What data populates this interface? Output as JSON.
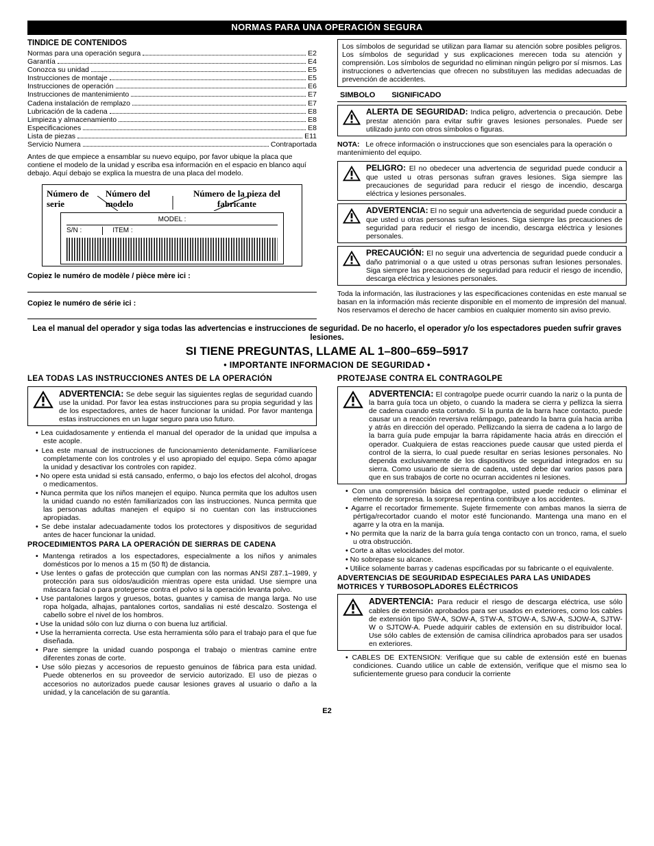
{
  "title_bar": "NORMAS PARA UNA OPERACIÓN SEGURA",
  "toc_heading": "TINDICE DE CONTENIDOS",
  "toc": [
    {
      "label": "Normas para una operación segura",
      "page": "E2"
    },
    {
      "label": "Garantía",
      "page": "E4"
    },
    {
      "label": "Conozca su unidad",
      "page": "E5"
    },
    {
      "label": "Instrucciones de montaje",
      "page": "E5"
    },
    {
      "label": "Instrucciones de operación",
      "page": "E6"
    },
    {
      "label": "Instrucciones de mantenimiento",
      "page": "E7"
    },
    {
      "label": "Cadena instalación de remplazo",
      "page": "E7"
    },
    {
      "label": "Lubricación de la cadena",
      "page": "E8"
    },
    {
      "label": "Limpieza y almacenamiento",
      "page": "E8"
    },
    {
      "label": "Especificaciones",
      "page": "E8"
    },
    {
      "label": "Lista de piezas",
      "page": "E11"
    },
    {
      "label": "Servicio Numera",
      "page": "Contraportada"
    }
  ],
  "pre_diagram_para": "Antes de que empiece a ensamblar su nuevo equipo, por favor ubique la placa que contiene el modelo de la unidad y escriba esa información en el espacio en blanco aquí debajo. Aquí debajo se explica la muestra de una placa del modelo.",
  "diagram": {
    "serie": "Número de serie",
    "modelo": "Número del modelo",
    "pieza": "Número de la pieza del fabricante",
    "model_lbl": "MODEL :",
    "sn_lbl": "S/N :",
    "item_lbl": "ITEM :"
  },
  "copy_model": "Copiez le numéro de modèle / pièce mère ici :",
  "copy_serial": "Copiez le numéro de série ici :",
  "sym_intro": "Los símbolos de seguridad se utilizan para llamar su atención sobre posibles peligros. Los símbolos de seguridad y sus explicaciones merecen toda su atención y comprensión. Los símbolos de seguridad no eliminan ningún peligro por sí mismos. Las instrucciones o advertencias que ofrecen no substituyen las medidas adecuadas de prevención de accidentes.",
  "sym_head_a": "SIMBOLO",
  "sym_head_b": "SIGNIFICADO",
  "alerta_title": "ALERTA DE SEGURIDAD:",
  "alerta_body": " Indica peligro, advertencia o precaución. Debe prestar atención para evitar sufrir graves lesiones personales. Puede ser utilizado junto con otros símbolos o figuras.",
  "nota_label": "NOTA:",
  "nota_body": "Le ofrece información o instrucciones que son esenciales para la operación o mantenimiento del equipo.",
  "peligro_title": "PELIGRO:",
  "peligro_body": " El no obedecer una advertencia de seguridad puede conducir a que usted u otras personas sufran graves lesiones. Siga siempre las precauciones de seguridad para reducir el riesgo de incendio, descarga eléctrica y lesiones personales.",
  "advert_title": "ADVERTENCIA:",
  "advert_body": " El no seguir una advertencia de seguridad puede conducir a que usted u otras personas sufran lesiones. Siga siempre las precauciones de seguridad para reducir el riesgo de incendio, descarga eléctrica y lesiones personales.",
  "precauc_title": "PRECAUCIÓN:",
  "precauc_body": " El no seguir una advertencia de seguridad puede conducir a daño patrimonial o a que usted u otras personas sufran lesiones personales. Siga siempre las precauciones de seguridad para reducir el riesgo de incendio, descarga eléctrica y lesiones personales.",
  "disclaimer": "Toda la información, las ilustraciones y las especificaciones contenidas en este manual se basan en la información más reciente disponible en el momento de impresión del manual. Nos reservamos el derecho de hacer cambios en cualquier momento sin aviso previo.",
  "read_manual": "Lea el manual del operador y siga todas las advertencias e instrucciones de seguridad. De no hacerlo, el operador y/o los espectadores pueden sufrir graves lesiones.",
  "questions": "SI TIENE PREGUNTAS, LLAME AL",
  "phone": "1–800–659–5917",
  "importante": "• IMPORTANTE INFORMACION DE SEGURIDAD •",
  "left_h1": "LEA TODAS LAS INSTRUCCIONES ANTES DE LA OPERACIÓN",
  "left_warn_title": "ADVERTENCIA:",
  "left_warn_body": " Se debe seguir las siguientes reglas de seguridad cuando use la unidad. Por favor lea estas instrucciones para su propia seguridad y las de los espectadores, antes de hacer funcionar la unidad. Por favor mantenga estas instrucciones en un lugar seguro para uso futuro.",
  "left_bullets_a": [
    "Lea cuidadosamente y entienda el manual del operador de la unidad que impulsa a este acople.",
    "Lea este manual de instrucciones de funcionamiento detenidamente. Familiarícese completamente con los controles y el uso apropiado del equipo. Sepa cómo apagar la unidad y desactivar los controles con rapidez.",
    "No opere esta unidad si está cansado, enfermo, o bajo los efectos del alcohol, drogas o medicamentos.",
    "Nunca permita que los niños manejen el equipo. Nunca permita que los adultos usen la unidad cuando no estén familiarizados con las instrucciones. Nunca permita que las personas adultas manejen el equipo si no cuentan con las instrucciones apropiadas.",
    "Se debe instalar adecuadamente todos los protectores y dispositivos de seguridad antes de hacer funcionar la unidad."
  ],
  "left_sub1": "PROCEDIMIENTOS PARA LA OPERACIÓN DE SIERRAS DE CADENA",
  "left_bullets_b": [
    "Mantenga retirados a los espectadores, especialmente a los niños y animales domésticos por lo menos a 15 m (50 ft) de distancia.",
    "Use lentes o gafas de protección que cumplan con las normas ANSI Z87.1–1989, y protección para sus oídos/audición mientras opere esta unidad. Use siempre una máscara facial o para protegerse contra el polvo si la operación levanta polvo.",
    "Use pantalones largos y gruesos, botas, guantes y camisa de manga larga. No use ropa holgada, alhajas, pantalones cortos, sandalias ni esté descalzo. Sostenga el cabello sobre el nivel de los hombros.",
    "Use la unidad sólo con luz diurna o con buena luz artificial.",
    "Use la herramienta correcta. Use esta herramienta sólo para el trabajo para el que fue diseñada.",
    "Pare siempre la unidad cuando posponga el trabajo o mientras camine entre diferentes zonas de corte.",
    "Use sólo piezas y accesorios de repuesto genuinos de fábrica para esta unidad. Puede obtenerlos en su proveedor de servicio autorizado. El uso de piezas o accesorios no autorizados puede causar lesiones graves al usuario o daño a la unidad, y la cancelación de su garantía."
  ],
  "right_h1": "PROTEJASE CONTRA EL CONTRAGOLPE",
  "right_warn_title": "ADVERTENCIA:",
  "right_warn_body": " El contragolpe puede ocurrir cuando la nariz o la punta de la barra guía toca un objeto, o cuando la madera se cierra y pellizca la sierra de cadena cuando esta cortando. Si la punta de la barra hace contacto, puede causar un a reacción reversiva relámpago, pateando la barra guía hacia arriba y atrás en dirección del operado. Pellizcando la sierra de cadena a lo largo de la barra guía pude empujar la barra rápidamente hacia atrás en dirección el operador. Cualquiera de estas reacciones puede causar que usted pierda el control de la sierra, lo cual puede resultar en serias lesiones personales.  No dependa exclusivamente de los dispositivos de seguridad integrados en su sierra. Como usuario de sierra de cadena, usted debe dar varios pasos para que en sus trabajos de corte no ocurran accidentes ni lesiones.",
  "right_bullets_a": [
    "Con una comprensión básica del contragolpe, usted puede reducir o eliminar el elemento de sorpresa. la sorpresa repentina contribuye a los accidentes.",
    "Agarre el recortador firmemente. Sujete firmemente con ambas manos la sierra de pértiga/recortador cuando el motor esté funcionando. Mantenga una mano en el agarre y la otra en la manija.",
    "No permita que la nariz de la barra guía tenga contacto con un tronco, rama, el suelo u otra obstrucción.",
    "Corte a altas velocidades del motor.",
    "No sobrepase su alcance.",
    "Utilice solamente barras y cadenas espcificadas por su fabricante o el equivalente."
  ],
  "right_sub1": "ADVERTENCIAS DE SEGURIDAD ESPECIALES PARA LAS UNIDADES MOTRICES Y TURBOSOPLADORES ELÉCTRICOS",
  "right_warn2_title": "ADVERTENCIA:",
  "right_warn2_body": " Para reducir el riesgo de descarga eléctrica, use sólo cables de extensión aprobados para ser usados en exteriores, como los cables de extensión tipo SW-A, SOW-A, STW-A, STOW-A, SJW-A, SJOW-A, SJTW-W o SJTOW-A. Puede adquirir cables de extensión en su distribuidor local. Use sólo cables de extensión de camisa cilíndrica aprobados para ser usados en exteriores.",
  "right_bullets_b": [
    "CABLES DE EXTENSION: Verifique que su cable de extensión esté en buenas condiciones. Cuando utilice un cable de extensión, verifique que el mismo sea lo suficientemente grueso para conducir la corriente"
  ],
  "page_num": "E2"
}
